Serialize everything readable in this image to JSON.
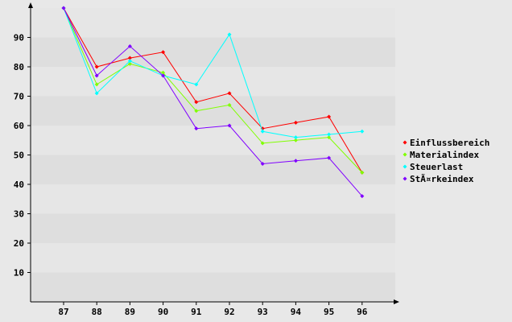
{
  "chart_data": {
    "type": "line",
    "title": "",
    "xlabel": "",
    "ylabel": "",
    "categories": [
      "87",
      "88",
      "89",
      "90",
      "91",
      "92",
      "93",
      "94",
      "95",
      "96"
    ],
    "ylim": [
      0,
      100
    ],
    "yticks": [
      10,
      20,
      30,
      40,
      50,
      60,
      70,
      80,
      90
    ],
    "grid": true,
    "legend_position": "right",
    "series": [
      {
        "name": "Einflussbereich",
        "color": "#ff0000",
        "values": [
          100,
          80,
          83,
          85,
          68,
          71,
          59,
          61,
          63,
          44
        ]
      },
      {
        "name": "Materialindex",
        "color": "#80ff00",
        "values": [
          100,
          74,
          81,
          78,
          65,
          67,
          54,
          55,
          56,
          44
        ]
      },
      {
        "name": "Steuerlast",
        "color": "#00ffff",
        "values": [
          100,
          71,
          82,
          77,
          74,
          91,
          58,
          56,
          57,
          58
        ]
      },
      {
        "name": "StÃ¤rkeindex",
        "color": "#8000ff",
        "values": [
          100,
          77,
          87,
          77,
          59,
          60,
          47,
          48,
          49,
          36
        ]
      }
    ]
  }
}
